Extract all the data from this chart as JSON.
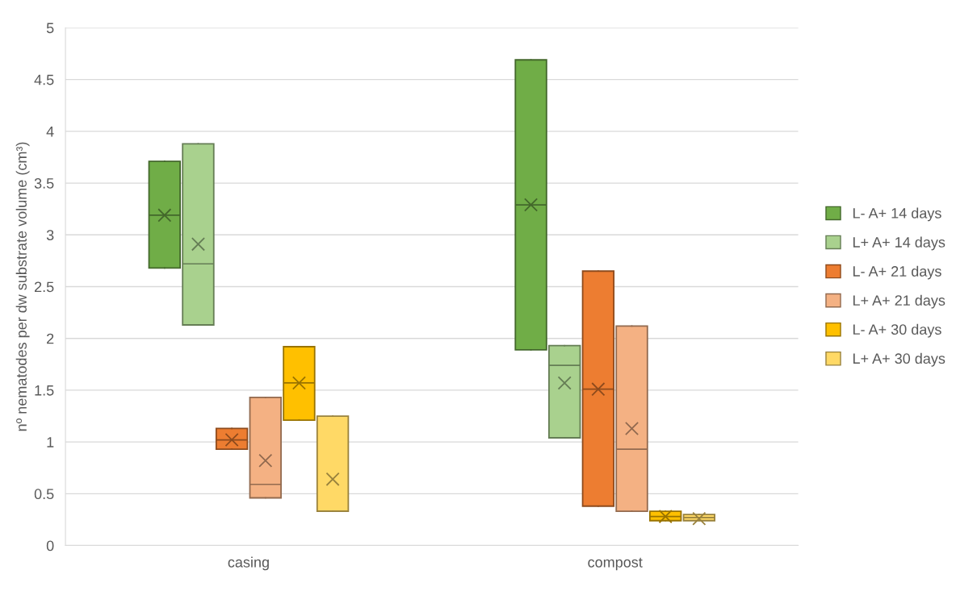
{
  "chart_data": {
    "type": "box",
    "ylabel": "nº nematodes per dw substrate volume (cm³)",
    "categories": [
      "casing",
      "compost"
    ],
    "ylim": [
      0,
      5
    ],
    "yticks": [
      0,
      0.5,
      1,
      1.5,
      2,
      2.5,
      3,
      3.5,
      4,
      4.5,
      5
    ],
    "grid": "y",
    "legend": "right",
    "series": [
      {
        "name": "L- A+ 14 days",
        "color": "#70ad47",
        "boxes": [
          {
            "low": 2.68,
            "q1": 2.68,
            "median": 3.19,
            "q3": 3.71,
            "high": 3.71,
            "mean": 3.19
          },
          {
            "low": 1.89,
            "q1": 1.89,
            "median": 3.29,
            "q3": 4.69,
            "high": 4.69,
            "mean": 3.29
          }
        ]
      },
      {
        "name": "L+ A+ 14 days",
        "color": "#a9d18e",
        "boxes": [
          {
            "low": 2.13,
            "q1": 2.13,
            "median": 2.72,
            "q3": 3.88,
            "high": 3.88,
            "mean": 2.91
          },
          {
            "low": 1.04,
            "q1": 1.04,
            "median": 1.74,
            "q3": 1.93,
            "high": 1.93,
            "mean": 1.57
          }
        ]
      },
      {
        "name": "L- A+ 21 days",
        "color": "#ed7d31",
        "boxes": [
          {
            "low": 0.93,
            "q1": 0.93,
            "median": 1.02,
            "q3": 1.13,
            "high": 1.13,
            "mean": 1.02
          },
          {
            "low": 0.38,
            "q1": 0.38,
            "median": 1.51,
            "q3": 2.65,
            "high": 2.65,
            "mean": 1.51
          }
        ]
      },
      {
        "name": "L+ A+ 21 days",
        "color": "#f4b183",
        "boxes": [
          {
            "low": 0.46,
            "q1": 0.46,
            "median": 0.59,
            "q3": 1.43,
            "high": 1.43,
            "mean": 0.82
          },
          {
            "low": 0.33,
            "q1": 0.33,
            "median": 0.93,
            "q3": 2.12,
            "high": 2.12,
            "mean": 1.13
          }
        ]
      },
      {
        "name": "L- A+ 30 days",
        "color": "#ffc000",
        "boxes": [
          {
            "low": 1.21,
            "q1": 1.21,
            "median": 1.57,
            "q3": 1.92,
            "high": 1.92,
            "mean": 1.57
          },
          {
            "low": 0.24,
            "q1": 0.24,
            "median": 0.28,
            "q3": 0.33,
            "high": 0.33,
            "mean": 0.28
          }
        ]
      },
      {
        "name": "L+ A+ 30 days",
        "color": "#ffd966",
        "boxes": [
          {
            "low": 0.33,
            "q1": 0.33,
            "median": 0.33,
            "q3": 1.25,
            "high": 1.25,
            "mean": 0.64
          },
          {
            "low": 0.24,
            "q1": 0.24,
            "median": 0.27,
            "q3": 0.3,
            "high": 0.3,
            "mean": 0.26
          }
        ]
      }
    ]
  }
}
